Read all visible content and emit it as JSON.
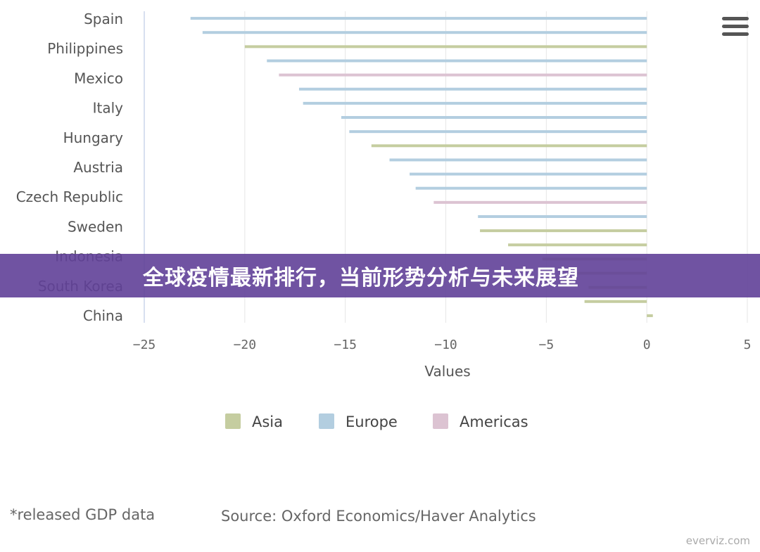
{
  "chart_data": {
    "type": "bar",
    "orientation": "horizontal",
    "title": "",
    "xlabel": "Values",
    "ylabel": "",
    "xlim": [
      -25,
      5
    ],
    "xticks": [
      -25,
      -20,
      -15,
      -10,
      -5,
      0,
      5
    ],
    "xtick_labels": [
      "−25",
      "−20",
      "−15",
      "−10",
      "−5",
      "0",
      "5"
    ],
    "categories_labeled": [
      "Spain",
      "Philippines",
      "Mexico",
      "Italy",
      "Hungary",
      "Austria",
      "Czech Republic",
      "Sweden",
      "Indonesia",
      "South Korea",
      "China"
    ],
    "series": [
      {
        "name": "Asia",
        "color": "#c5cda0"
      },
      {
        "name": "Europe",
        "color": "#b3cee0"
      },
      {
        "name": "Americas",
        "color": "#dcc3d2"
      }
    ],
    "bars": [
      {
        "series": "Europe",
        "value": -22.7
      },
      {
        "series": "Europe",
        "value": -22.1
      },
      {
        "series": "Asia",
        "value": -20.0
      },
      {
        "series": "Europe",
        "value": -18.9
      },
      {
        "series": "Americas",
        "value": -18.3
      },
      {
        "series": "Europe",
        "value": -17.3
      },
      {
        "series": "Europe",
        "value": -17.1
      },
      {
        "series": "Europe",
        "value": -15.2
      },
      {
        "series": "Europe",
        "value": -14.8
      },
      {
        "series": "Asia",
        "value": -13.7
      },
      {
        "series": "Europe",
        "value": -12.8
      },
      {
        "series": "Europe",
        "value": -11.8
      },
      {
        "series": "Europe",
        "value": -11.5
      },
      {
        "series": "Americas",
        "value": -10.6
      },
      {
        "series": "Europe",
        "value": -8.4
      },
      {
        "series": "Asia",
        "value": -8.3
      },
      {
        "series": "Asia",
        "value": -6.9
      },
      {
        "series": "Asia",
        "value": -5.2
      },
      {
        "series": "Asia",
        "value": -3.6
      },
      {
        "series": "Asia",
        "value": -2.9
      },
      {
        "series": "Asia",
        "value": -3.1
      },
      {
        "series": "Asia",
        "value": 0.3
      }
    ],
    "legend": [
      "Asia",
      "Europe",
      "Americas"
    ],
    "legend_position": "bottom-center",
    "grid": true
  },
  "footnote": "*released GDP data",
  "source": "Source: Oxford Economics/Haver Analytics",
  "credit": "everviz.com",
  "banner": "全球疫情最新排行，当前形势分析与未来展望",
  "menu_icon": "hamburger-menu-icon"
}
